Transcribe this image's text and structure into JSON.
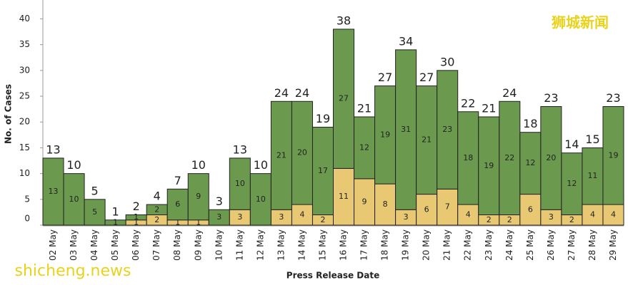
{
  "chart_data": {
    "type": "stacked-bar",
    "x_label": "Press Release Date",
    "y_label": "No. of Cases",
    "categories": [
      "02 May",
      "03 May",
      "04 May",
      "05 May",
      "06 May",
      "07 May",
      "08 May",
      "09 May",
      "10 May",
      "11 May",
      "12 May",
      "13 May",
      "14 May",
      "15 May",
      "16 May",
      "17 May",
      "18 May",
      "19 May",
      "20 May",
      "21 May",
      "22 May",
      "23 May",
      "24 May",
      "25 May",
      "26 May",
      "27 May",
      "28 May",
      "29 May"
    ],
    "series": [
      {
        "color": "#e8c872",
        "values": [
          0,
          0,
          0,
          0,
          1,
          2,
          1,
          1,
          0,
          3,
          0,
          3,
          4,
          2,
          11,
          9,
          8,
          3,
          6,
          7,
          4,
          2,
          2,
          6,
          3,
          2,
          4,
          4
        ]
      },
      {
        "color": "#6b9a4f",
        "values": [
          13,
          10,
          5,
          1,
          1,
          2,
          6,
          9,
          3,
          10,
          10,
          21,
          20,
          17,
          27,
          12,
          19,
          31,
          21,
          23,
          18,
          19,
          22,
          12,
          20,
          12,
          11,
          19
        ]
      }
    ],
    "totals": [
      13,
      10,
      5,
      1,
      2,
      4,
      7,
      10,
      3,
      13,
      10,
      24,
      24,
      19,
      38,
      21,
      27,
      34,
      27,
      30,
      22,
      21,
      24,
      18,
      23,
      14,
      15,
      23
    ],
    "ylim": [
      0,
      42
    ],
    "yticks": [
      0,
      5,
      10,
      15,
      20,
      25,
      30,
      35,
      40
    ],
    "watermarks": [
      "狮城新闻",
      "shicheng.news"
    ]
  }
}
